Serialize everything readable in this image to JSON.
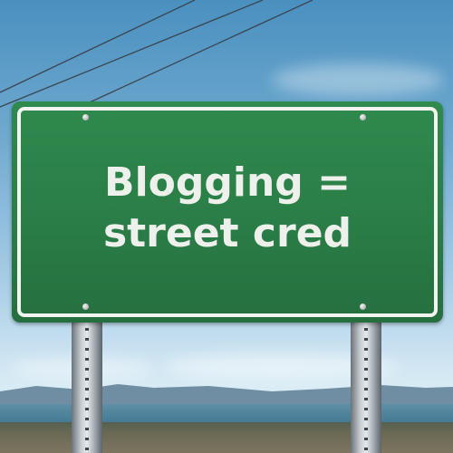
{
  "sign": {
    "line1": "Blogging =",
    "line2": "street cred"
  },
  "colors": {
    "sign_green": "#2a7d46",
    "sign_text": "#eef0ec",
    "sky_top": "#4a90bf"
  }
}
